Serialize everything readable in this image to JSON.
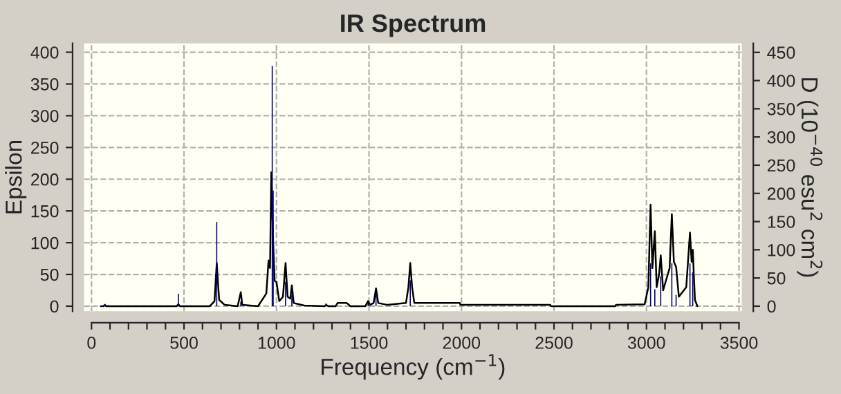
{
  "chart_data": {
    "type": "line",
    "title": "IR Spectrum",
    "xlabel": "Frequency (cm$^{−1}$)",
    "ylabel": "Epsilon",
    "y2label": "D (10$^{−40}$ esu$^{2}$ cm$^{2}$)",
    "series": [
      {
        "color": "#000000",
        "x": [
          50,
          65,
          72,
          80,
          460,
          470,
          478,
          640,
          665,
          677,
          690,
          720,
          790,
          807,
          815,
          900,
          945,
          957,
          965,
          972,
          982,
          990,
          1000,
          1015,
          1035,
          1049,
          1060,
          1075,
          1083,
          1093,
          1150,
          1260,
          1268,
          1280,
          1320,
          1330,
          1380,
          1400,
          1480,
          1495,
          1505,
          1525,
          1538,
          1550,
          1600,
          1700,
          1713,
          1723,
          1733,
          1745,
          1990,
          1995,
          2480,
          2485,
          2830,
          2835,
          2990,
          3010,
          3022,
          3032,
          3045,
          3055,
          3068,
          3077,
          3090,
          3125,
          3137,
          3148,
          3160,
          3175,
          3215,
          3235,
          3244,
          3250,
          3262,
          3275
        ],
        "values": [
          0,
          0,
          2,
          0,
          0,
          3,
          0,
          0,
          8,
          68,
          10,
          2,
          0,
          22,
          2,
          0,
          20,
          72,
          60,
          211,
          100,
          40,
          38,
          8,
          15,
          68,
          15,
          12,
          33,
          5,
          1,
          0,
          2,
          0,
          0,
          5,
          5,
          0,
          0,
          8,
          2,
          5,
          28,
          5,
          2,
          5,
          30,
          68,
          30,
          5,
          5,
          2,
          2,
          0,
          0,
          2,
          3,
          30,
          160,
          60,
          118,
          30,
          50,
          80,
          25,
          60,
          145,
          70,
          62,
          15,
          30,
          116,
          70,
          89,
          10,
          0
        ]
      },
      {
        "type": "bar",
        "axis": "y2",
        "color": "#000080",
        "x": [
          72,
          216,
          470,
          677,
          807,
          977,
          982,
          1049,
          1083,
          1268,
          1495,
          1538,
          1723,
          3022,
          3045,
          3077,
          3137,
          3160,
          3235,
          3250
        ],
        "values": [
          4,
          null,
          22,
          149,
          8,
          426,
          205,
          43,
          20,
          5,
          6,
          20,
          46,
          76,
          30,
          53,
          76,
          20,
          76,
          60
        ]
      }
    ],
    "xlim": [
      -40,
      3515
    ],
    "ylim": [
      -8,
      414
    ],
    "y2lim": [
      -9,
      466
    ],
    "xticks": [
      0,
      {
        "value": 100,
        "label": null
      },
      {
        "value": 200,
        "label": null
      },
      {
        "value": 300,
        "label": null
      },
      {
        "value": 400,
        "label": null
      },
      500,
      {
        "value": 600,
        "label": null
      },
      {
        "value": 700,
        "label": null
      },
      {
        "value": 800,
        "label": null
      },
      {
        "value": 900,
        "label": null
      },
      1000,
      {
        "value": 1100,
        "label": null
      },
      {
        "value": 1200,
        "label": null
      },
      {
        "value": 1300,
        "label": null
      },
      {
        "value": 1400,
        "label": null
      },
      1500,
      {
        "value": 1600,
        "label": null
      },
      {
        "value": 1700,
        "label": null
      },
      {
        "value": 1800,
        "label": null
      },
      {
        "value": 1900,
        "label": null
      },
      2000,
      {
        "value": 2100,
        "label": null
      },
      {
        "value": 2200,
        "label": null
      },
      {
        "value": 2300,
        "label": null
      },
      {
        "value": 2400,
        "label": null
      },
      2500,
      {
        "value": 2600,
        "label": null
      },
      {
        "value": 2700,
        "label": null
      },
      {
        "value": 2800,
        "label": null
      },
      {
        "value": 2900,
        "label": null
      },
      3000,
      {
        "value": 3100,
        "label": null
      },
      {
        "value": 3200,
        "label": null
      },
      {
        "value": 3300,
        "label": null
      },
      {
        "value": 3400,
        "label": null
      },
      3500
    ],
    "yticks": [
      0,
      50,
      100,
      150,
      200,
      250,
      300,
      350,
      400
    ],
    "y2ticks": [
      0,
      50,
      100,
      150,
      200,
      250,
      300,
      350,
      400,
      450
    ],
    "grid": true,
    "legend": false
  }
}
